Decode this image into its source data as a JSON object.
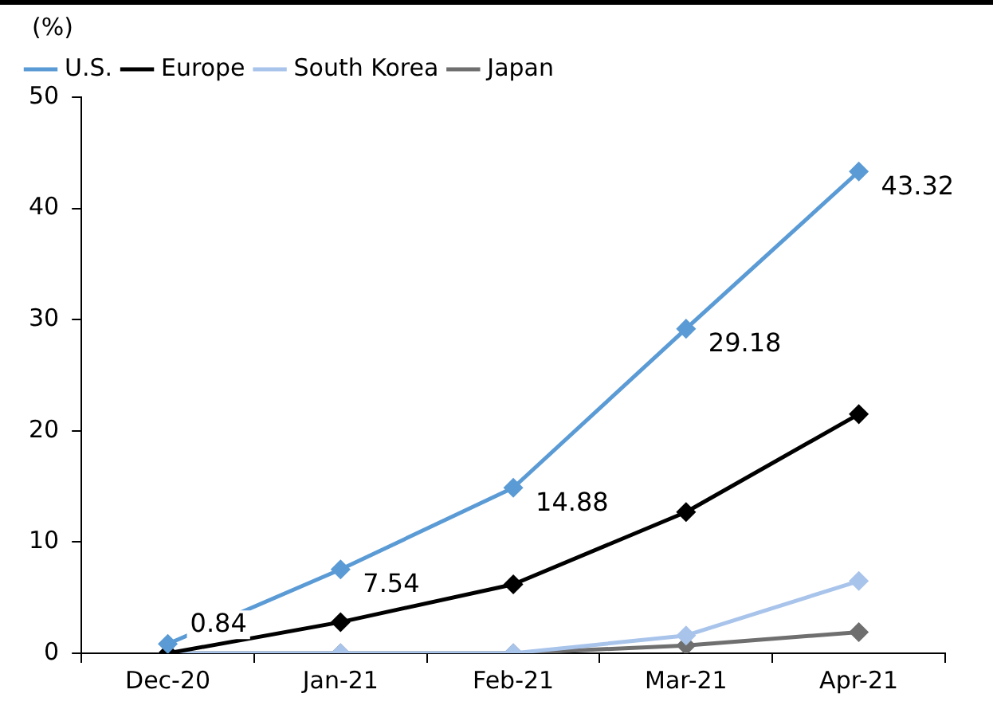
{
  "chart_data": {
    "type": "line",
    "ylabel": "(%)",
    "categories": [
      "Dec-20",
      "Jan-21",
      "Feb-21",
      "Mar-21",
      "Apr-21"
    ],
    "series": [
      {
        "name": "U.S.",
        "color": "#5b9bd5",
        "values": [
          0.84,
          7.54,
          14.88,
          29.18,
          43.32
        ],
        "value_labels": [
          "0.84",
          "7.54",
          "14.88",
          "29.18",
          "43.32"
        ]
      },
      {
        "name": "Europe",
        "color": "#000000",
        "values": [
          0,
          2.8,
          6.2,
          12.7,
          21.5
        ]
      },
      {
        "name": "South Korea",
        "color": "#a9c4eb",
        "values": [
          0,
          0,
          0,
          1.6,
          6.5
        ]
      },
      {
        "name": "Japan",
        "color": "#6f6f6f",
        "values": [
          0,
          0,
          0,
          0.7,
          1.9
        ]
      }
    ],
    "ylim": [
      0,
      50
    ],
    "yticks": [
      0,
      10,
      20,
      30,
      40,
      50
    ],
    "grid": false,
    "legend": "top left",
    "marker": "diamond",
    "line_style": "solid"
  }
}
